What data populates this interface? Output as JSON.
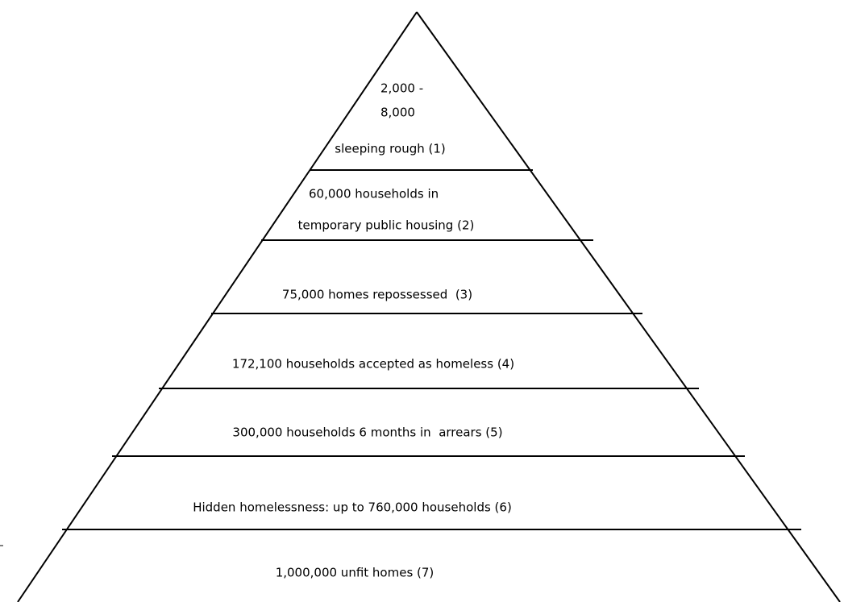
{
  "levels": [
    {
      "lines": [
        "2,000 -",
        "8,000",
        "sleeping rough (1)"
      ]
    },
    {
      "lines": [
        "60,000 households in",
        "temporary public housing (2)"
      ]
    },
    {
      "lines": [
        "75,000 homes repossessed  (3)"
      ]
    },
    {
      "lines": [
        "172,100 households accepted as homeless (4)"
      ]
    },
    {
      "lines": [
        "300,000 households 6 months in  arrears (5)"
      ]
    },
    {
      "lines": [
        "Hidden homelessness: up to 760,000 households (6)"
      ]
    },
    {
      "lines": [
        "1,000,000 unfit homes (7)"
      ]
    }
  ]
}
